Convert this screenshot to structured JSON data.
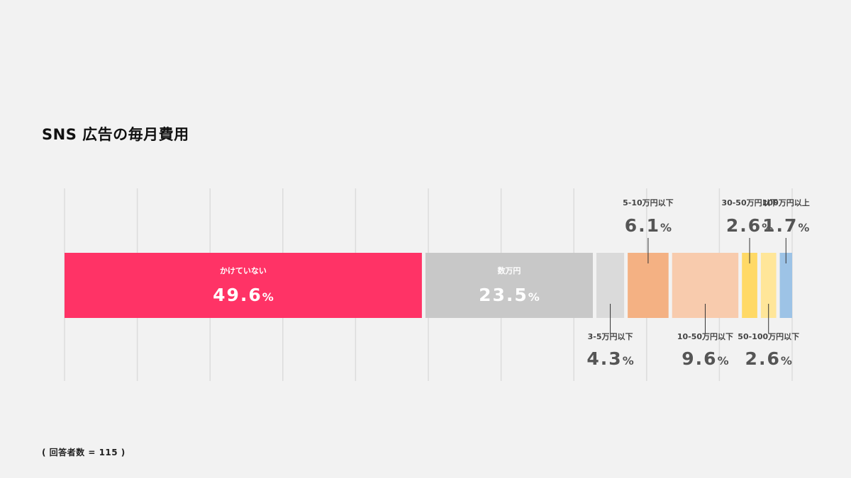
{
  "title": "SNS 広告の毎月費用",
  "footnote": "( 回答者数 = 115 )",
  "colors": {
    "background": "#f2f2f2",
    "gridline": "#dcdcdc",
    "value_dark": "#555555",
    "label_dark": "#444444",
    "inside_text": "#ffffff"
  },
  "chart_data": {
    "type": "bar",
    "orientation": "horizontal-stacked",
    "unit": "%",
    "xlim": [
      0,
      100
    ],
    "grid": true,
    "categories": [
      "かけていない",
      "数万円",
      "3-5万円以下",
      "5-10万円以下",
      "10-50万円以下",
      "30-50万円以下",
      "50-100万円以下",
      "100万円以上"
    ],
    "values": [
      49.6,
      23.5,
      4.3,
      6.1,
      9.6,
      2.6,
      2.6,
      1.7
    ],
    "value_labels": [
      "49.6%",
      "23.5%",
      "4.3%",
      "6.1%",
      "9.6%",
      "2.6%",
      "2.6%",
      "1.7%"
    ],
    "label_positions": [
      "inside",
      "inside",
      "below",
      "above",
      "below",
      "above",
      "below",
      "above"
    ],
    "colors": [
      "#ff3366",
      "#c8c8c8",
      "#dadada",
      "#f4b183",
      "#f8cbad",
      "#ffd966",
      "#ffe699",
      "#9dc3e6"
    ]
  }
}
